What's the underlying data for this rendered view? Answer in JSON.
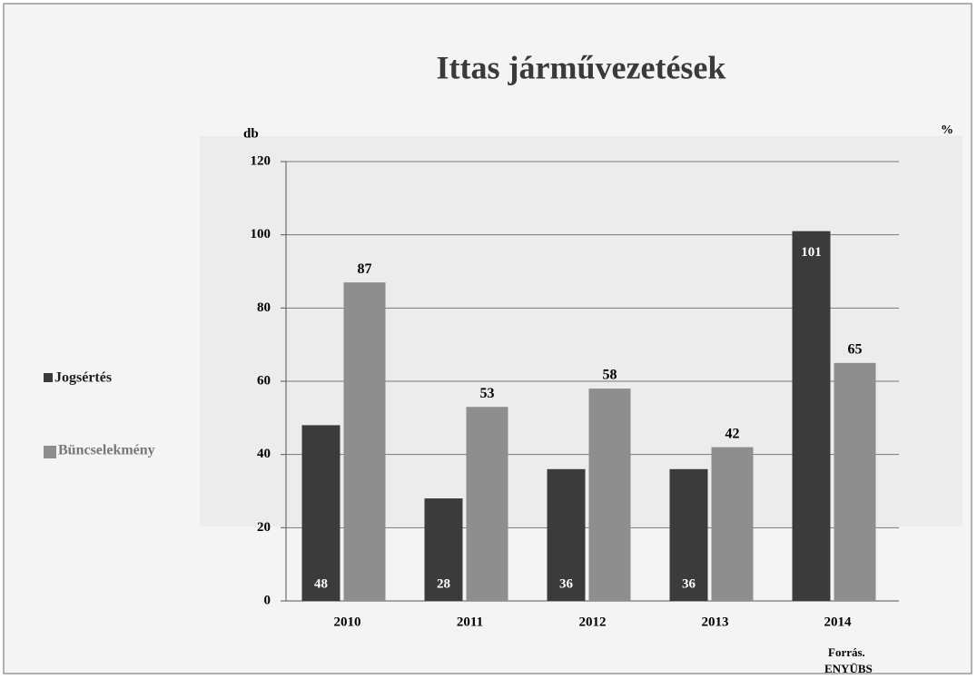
{
  "chart_data": {
    "type": "bar",
    "title": "Ittas járművezetések",
    "y_label": "db",
    "y2_label": "%",
    "categories": [
      "2010",
      "2011",
      "2012",
      "2013",
      "2014"
    ],
    "series": [
      {
        "name": "Jogsértés",
        "color": "#3b3b3b",
        "values": [
          48,
          28,
          36,
          36,
          101
        ]
      },
      {
        "name": "Büncselekmény",
        "color": "#8e8e8e",
        "values": [
          87,
          53,
          58,
          42,
          65
        ]
      }
    ],
    "ylim": [
      0,
      120
    ],
    "yticks": [
      0,
      20,
      40,
      60,
      80,
      100,
      120
    ],
    "grid": true,
    "legend": "left",
    "source": [
      "Forrás.",
      "ENYÜBS"
    ]
  }
}
